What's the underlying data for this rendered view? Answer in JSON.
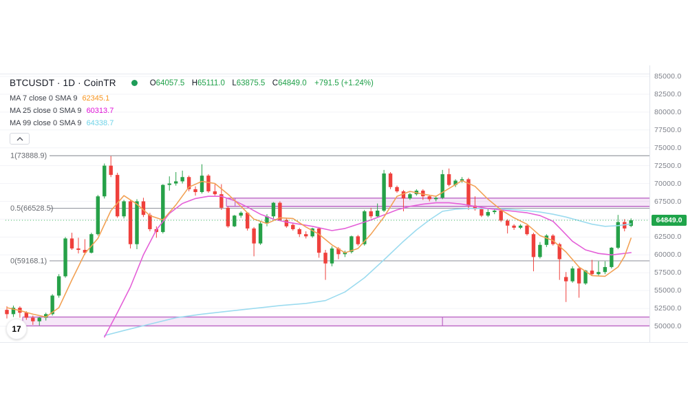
{
  "colors": {
    "up": "#26a148",
    "down": "#ef403c",
    "ma7": "#f2a154",
    "ma25": "#e45fd8",
    "ma99": "#9bdbef",
    "ma7_text": "#f7941d",
    "ma25_text": "#e011d7",
    "ma99_text": "#6fd3e8",
    "value_green": "#1fa049",
    "status_dot": "#1e9c58",
    "band_fill": "rgba(216,147,222,0.22)",
    "band_border": "#bb66c4",
    "fib_line": "#989ba3",
    "fib_text": "#66696f",
    "dotted": "#33b35a",
    "badge_bg": "#1fa44a",
    "grid": "#f2f3f7",
    "title": "#131722"
  },
  "header": {
    "symbol_title": "BTCUSDT · 1D · CoinTR",
    "ohlc": {
      "o_label": "O",
      "o": "64057.5",
      "h_label": "H",
      "h": "65111.0",
      "l_label": "L",
      "l": "63875.5",
      "c_label": "C",
      "c": "64849.0",
      "change": "+791.5 (+1.24%)"
    },
    "indicators": [
      {
        "label": "MA 7 close 0 SMA 9",
        "value": "62345.1"
      },
      {
        "label": "MA 25 close 0 SMA 9",
        "value": "60313.7"
      },
      {
        "label": "MA 99 close 0 SMA 9",
        "value": "64338.7"
      }
    ]
  },
  "axis": {
    "last_price_label": "64849.0"
  },
  "footer": {
    "tv_logo_glyph": "17"
  },
  "chart_data": {
    "type": "candlestick",
    "symbol": "BTCUSDT",
    "interval": "1D",
    "exchange": "CoinTR",
    "last_price": 64849.0,
    "y_axis": {
      "ticks": [
        {
          "price": 85000,
          "label": "85000.0"
        },
        {
          "price": 82500,
          "label": "82500.0"
        },
        {
          "price": 80000,
          "label": "80000.0"
        },
        {
          "price": 77500,
          "label": "77500.0"
        },
        {
          "price": 75000,
          "label": "75000.0"
        },
        {
          "price": 72500,
          "label": "72500.0"
        },
        {
          "price": 70000,
          "label": "70000.0"
        },
        {
          "price": 67500,
          "label": "67500.0"
        },
        {
          "price": 65000,
          "label": ""
        },
        {
          "price": 62500,
          "label": "62500.0"
        },
        {
          "price": 60000,
          "label": "60000.0"
        },
        {
          "price": 57500,
          "label": "57500.0"
        },
        {
          "price": 55000,
          "label": "55000.0"
        },
        {
          "price": 52500,
          "label": "52500.0"
        },
        {
          "price": 50000,
          "label": "50000.0"
        }
      ]
    },
    "fib_levels": [
      {
        "label": "1(73888.9)",
        "price": 73888.9
      },
      {
        "label": "0.5(66528.5)",
        "price": 66528.5
      },
      {
        "label": "0(59168.1)",
        "price": 59168.1
      }
    ],
    "bands": [
      {
        "price_top": 67950,
        "price_bottom": 66790,
        "start_index": 33.76,
        "anchor_indexes": [
          35.1
        ]
      },
      {
        "price_top": 51300,
        "price_bottom": 50050,
        "start_index": 2.43,
        "anchor_indexes": [
          67
        ]
      }
    ],
    "candles": [
      [
        52300,
        52800,
        51100,
        51700
      ],
      [
        51700,
        52900,
        51300,
        52600
      ],
      [
        52600,
        52800,
        51200,
        51900
      ],
      [
        51900,
        52100,
        50900,
        51200
      ],
      [
        51200,
        51500,
        50200,
        50700
      ],
      [
        50700,
        51300,
        50100,
        51200
      ],
      [
        51200,
        51900,
        50800,
        51700
      ],
      [
        51700,
        54500,
        51500,
        54300
      ],
      [
        54300,
        57300,
        54000,
        57000
      ],
      [
        57000,
        62500,
        56800,
        62300
      ],
      [
        62300,
        63100,
        60700,
        60900
      ],
      [
        60900,
        62400,
        60200,
        60700
      ],
      [
        60700,
        62200,
        60000,
        60300
      ],
      [
        60300,
        63100,
        60200,
        62900
      ],
      [
        62900,
        68400,
        62700,
        68200
      ],
      [
        68200,
        72800,
        67900,
        72500
      ],
      [
        72500,
        73850,
        70900,
        71200
      ],
      [
        71200,
        71500,
        65200,
        65400
      ],
      [
        65400,
        67700,
        65100,
        67500
      ],
      [
        67500,
        67700,
        60900,
        61500
      ],
      [
        61500,
        67800,
        60800,
        67500
      ],
      [
        67500,
        68000,
        65300,
        65600
      ],
      [
        65600,
        65900,
        63300,
        63600
      ],
      [
        63600,
        64000,
        62400,
        63200
      ],
      [
        63200,
        69900,
        63000,
        69800
      ],
      [
        69800,
        71000,
        69000,
        70000
      ],
      [
        70000,
        71600,
        69700,
        70300
      ],
      [
        70300,
        71800,
        70000,
        70900
      ],
      [
        70900,
        71100,
        68900,
        69200
      ],
      [
        69200,
        69600,
        68300,
        68800
      ],
      [
        68800,
        72700,
        68600,
        71100
      ],
      [
        71100,
        71300,
        68700,
        68900
      ],
      [
        68900,
        69900,
        68300,
        68500
      ],
      [
        68500,
        69900,
        66300,
        66600
      ],
      [
        66600,
        66800,
        63800,
        64000
      ],
      [
        64000,
        65600,
        63900,
        65500
      ],
      [
        65500,
        66100,
        65200,
        65900
      ],
      [
        65900,
        66000,
        63400,
        63700
      ],
      [
        63700,
        63900,
        59800,
        61600
      ],
      [
        61600,
        64800,
        61400,
        64400
      ],
      [
        64400,
        65700,
        64000,
        65400
      ],
      [
        65400,
        67400,
        65100,
        67300
      ],
      [
        67300,
        67500,
        64800,
        64900
      ],
      [
        64900,
        65200,
        63800,
        64000
      ],
      [
        64200,
        64500,
        63400,
        63600
      ],
      [
        63600,
        63800,
        62500,
        62900
      ],
      [
        62900,
        63300,
        62300,
        62600
      ],
      [
        62600,
        63800,
        62400,
        63700
      ],
      [
        63700,
        63900,
        59600,
        60300
      ],
      [
        60300,
        60700,
        56500,
        58800
      ],
      [
        58800,
        61200,
        58400,
        60900
      ],
      [
        60900,
        61100,
        59400,
        60100
      ],
      [
        60100,
        60600,
        59700,
        60400
      ],
      [
        60400,
        62700,
        60200,
        62600
      ],
      [
        62600,
        62800,
        61300,
        61500
      ],
      [
        61500,
        66300,
        61300,
        66100
      ],
      [
        66100,
        66600,
        65100,
        65400
      ],
      [
        65400,
        67200,
        65300,
        66200
      ],
      [
        66200,
        71900,
        66000,
        71400
      ],
      [
        71400,
        71600,
        69200,
        69500
      ],
      [
        69500,
        69700,
        68700,
        68900
      ],
      [
        68900,
        69100,
        66100,
        67900
      ],
      [
        67900,
        68700,
        67700,
        68500
      ],
      [
        68500,
        69200,
        68300,
        69000
      ],
      [
        69000,
        69200,
        67700,
        68200
      ],
      [
        68200,
        68400,
        67500,
        67800
      ],
      [
        67800,
        68300,
        67500,
        68000
      ],
      [
        68000,
        71900,
        67800,
        71300
      ],
      [
        71300,
        72100,
        69600,
        69800
      ],
      [
        69800,
        70600,
        69500,
        70400
      ],
      [
        70400,
        70900,
        70100,
        70600
      ],
      [
        70600,
        70800,
        66300,
        66900
      ],
      [
        66900,
        68200,
        66200,
        66400
      ],
      [
        66400,
        66700,
        65300,
        65500
      ],
      [
        65500,
        66400,
        65300,
        66000
      ],
      [
        66000,
        66500,
        65700,
        66200
      ],
      [
        66200,
        66400,
        64600,
        64800
      ],
      [
        64800,
        65000,
        63000,
        64100
      ],
      [
        64100,
        64300,
        63500,
        63800
      ],
      [
        63800,
        64300,
        63600,
        64100
      ],
      [
        64100,
        64200,
        62700,
        62900
      ],
      [
        62900,
        63100,
        57700,
        59700
      ],
      [
        59700,
        61800,
        59500,
        61400
      ],
      [
        61400,
        62900,
        61100,
        62700
      ],
      [
        62700,
        62900,
        61300,
        61500
      ],
      [
        61500,
        61700,
        56500,
        59400
      ],
      [
        56900,
        57600,
        53400,
        56300
      ],
      [
        56300,
        58400,
        56100,
        58100
      ],
      [
        58100,
        58300,
        54000,
        56000
      ],
      [
        56000,
        57900,
        55800,
        57800
      ],
      [
        57800,
        59300,
        57100,
        57300
      ],
      [
        57300,
        59100,
        57100,
        57600
      ],
      [
        57600,
        59100,
        57300,
        58300
      ],
      [
        58300,
        61100,
        58100,
        61000
      ],
      [
        61000,
        65600,
        60800,
        64600
      ],
      [
        64600,
        65000,
        63300,
        63700
      ],
      [
        64057.5,
        65111,
        63875.5,
        64849
      ]
    ],
    "ma_lines": [
      {
        "name": "MA 99",
        "color_key": "ma99",
        "points": [
          [
            15,
            48700
          ],
          [
            18,
            49400
          ],
          [
            22,
            50300
          ],
          [
            26,
            51200
          ],
          [
            30,
            51700
          ],
          [
            34,
            52100
          ],
          [
            38,
            52500
          ],
          [
            42,
            52900
          ],
          [
            46,
            53200
          ],
          [
            49,
            53600
          ],
          [
            52,
            54800
          ],
          [
            55,
            56800
          ],
          [
            58,
            59300
          ],
          [
            61,
            61900
          ],
          [
            63,
            63500
          ],
          [
            65,
            64900
          ],
          [
            67,
            66100
          ],
          [
            69,
            66400
          ],
          [
            71,
            66500
          ],
          [
            74,
            66500
          ],
          [
            77,
            66400
          ],
          [
            80,
            66200
          ],
          [
            82,
            66000
          ],
          [
            84,
            65700
          ],
          [
            86,
            65300
          ],
          [
            88,
            64800
          ],
          [
            90,
            64300
          ],
          [
            92,
            64000
          ],
          [
            94,
            64100
          ],
          [
            96,
            64339
          ]
        ]
      },
      {
        "name": "MA 25",
        "color_key": "ma25",
        "points": [
          [
            15,
            48500
          ],
          [
            17,
            51900
          ],
          [
            19,
            55500
          ],
          [
            21,
            60000
          ],
          [
            23,
            63500
          ],
          [
            25,
            65800
          ],
          [
            27,
            67200
          ],
          [
            29,
            67900
          ],
          [
            31,
            68200
          ],
          [
            33,
            68200
          ],
          [
            35,
            67600
          ],
          [
            37,
            66700
          ],
          [
            39,
            65700
          ],
          [
            41,
            65000
          ],
          [
            43,
            64600
          ],
          [
            45,
            64300
          ],
          [
            47,
            64000
          ],
          [
            49,
            63600
          ],
          [
            50,
            63400
          ],
          [
            52,
            63700
          ],
          [
            54,
            64300
          ],
          [
            56,
            64900
          ],
          [
            58,
            65600
          ],
          [
            60,
            66300
          ],
          [
            62,
            66800
          ],
          [
            64,
            67100
          ],
          [
            66,
            67300
          ],
          [
            68,
            67300
          ],
          [
            70,
            67100
          ],
          [
            72,
            66800
          ],
          [
            74,
            66500
          ],
          [
            76,
            66300
          ],
          [
            78,
            66100
          ],
          [
            80,
            65900
          ],
          [
            82,
            65500
          ],
          [
            84,
            64700
          ],
          [
            85,
            63800
          ],
          [
            87,
            61900
          ],
          [
            89,
            60700
          ],
          [
            91,
            60200
          ],
          [
            93,
            60000
          ],
          [
            96,
            60314
          ]
        ]
      },
      {
        "name": "MA 7",
        "color_key": "ma7",
        "points": [
          [
            0,
            52600
          ],
          [
            2,
            52200
          ],
          [
            4,
            51700
          ],
          [
            6,
            51300
          ],
          [
            8,
            52600
          ],
          [
            10,
            56500
          ],
          [
            12,
            60200
          ],
          [
            14,
            62300
          ],
          [
            16,
            66200
          ],
          [
            18,
            68300
          ],
          [
            20,
            67100
          ],
          [
            22,
            65500
          ],
          [
            24,
            64900
          ],
          [
            26,
            67000
          ],
          [
            28,
            69500
          ],
          [
            30,
            70300
          ],
          [
            32,
            70000
          ],
          [
            34,
            68500
          ],
          [
            36,
            66800
          ],
          [
            38,
            65000
          ],
          [
            40,
            64400
          ],
          [
            42,
            65200
          ],
          [
            44,
            65100
          ],
          [
            46,
            63900
          ],
          [
            48,
            62900
          ],
          [
            50,
            61400
          ],
          [
            52,
            60300
          ],
          [
            54,
            60900
          ],
          [
            56,
            62900
          ],
          [
            58,
            65300
          ],
          [
            60,
            68200
          ],
          [
            62,
            68900
          ],
          [
            64,
            68500
          ],
          [
            66,
            68200
          ],
          [
            68,
            69300
          ],
          [
            70,
            70400
          ],
          [
            72,
            69600
          ],
          [
            74,
            67800
          ],
          [
            76,
            66300
          ],
          [
            78,
            65200
          ],
          [
            80,
            64300
          ],
          [
            82,
            62700
          ],
          [
            84,
            62000
          ],
          [
            86,
            60400
          ],
          [
            88,
            58300
          ],
          [
            90,
            57100
          ],
          [
            92,
            57000
          ],
          [
            94,
            58300
          ],
          [
            95,
            59800
          ],
          [
            96,
            62345
          ]
        ]
      }
    ]
  }
}
